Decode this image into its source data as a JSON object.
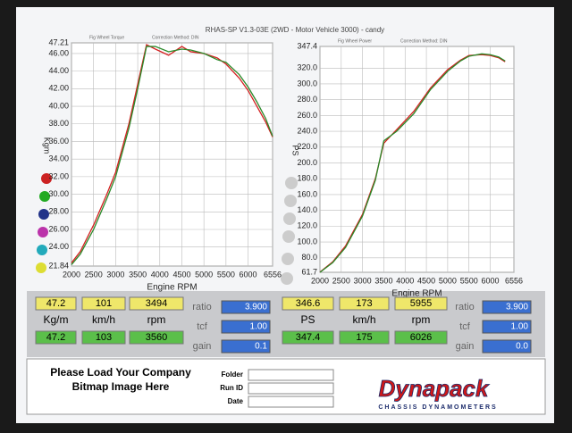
{
  "title": "RHAS-SP V1.3-03E  (2WD - Motor Vehicle 3000) -  candy",
  "chart_data": [
    {
      "type": "line",
      "xlabel": "Engine RPM",
      "ylabel": "Kgm",
      "legend_notes": [
        "Fig Wheel Torque",
        "Correction Method: DIN"
      ],
      "xlim": [
        2000,
        6556
      ],
      "xticks": [
        2000,
        2500,
        3000,
        3500,
        4000,
        4500,
        5000,
        5500,
        6000,
        6556
      ],
      "ylim": [
        21.84,
        47.21
      ],
      "yticks": [
        21.84,
        {
          "value": 24,
          "label": "24.00"
        },
        {
          "value": 26,
          "label": "26.00"
        },
        {
          "value": 28,
          "label": "28.00"
        },
        {
          "value": 30,
          "label": "30.00"
        },
        {
          "value": 32,
          "label": "32.00"
        },
        {
          "value": 34,
          "label": "34.00"
        },
        {
          "value": 36,
          "label": "36.00"
        },
        {
          "value": 38,
          "label": "38.00"
        },
        {
          "value": 40,
          "label": "40.00"
        },
        {
          "value": 42,
          "label": "42.00"
        },
        {
          "value": 44,
          "label": "44.00"
        },
        {
          "value": 46,
          "label": "46.00"
        },
        47.21
      ],
      "grid": true,
      "x": [
        2000,
        2200,
        2500,
        2800,
        3000,
        3300,
        3500,
        3700,
        3900,
        4200,
        4500,
        4700,
        5000,
        5300,
        5500,
        5800,
        6000,
        6200,
        6400,
        6556
      ],
      "series": [
        {
          "color": "#d42020",
          "values": [
            22.2,
            23.5,
            26.5,
            30,
            32.5,
            38,
            42.5,
            47.0,
            46.5,
            45.8,
            46.8,
            46.2,
            46.0,
            45.5,
            44.8,
            43.2,
            41.8,
            40,
            38.2,
            36.5
          ]
        },
        {
          "color": "#2a8a2a",
          "values": [
            22.0,
            23.2,
            26,
            29.5,
            32,
            37.5,
            42,
            46.8,
            46.8,
            46.2,
            46.5,
            46.4,
            46.0,
            45.3,
            45,
            43.6,
            42.2,
            40.5,
            38.6,
            36.6
          ]
        }
      ]
    },
    {
      "type": "line",
      "xlabel": "Engine RPM",
      "ylabel": "PS",
      "legend_notes": [
        "Fig Wheel Power",
        "Correction Method: DIN"
      ],
      "xlim": [
        2000,
        6556
      ],
      "xticks": [
        2000,
        2500,
        3000,
        3500,
        4000,
        4500,
        5000,
        5500,
        6000,
        6556
      ],
      "ylim": [
        61.7,
        347.4
      ],
      "yticks": [
        61.7,
        {
          "value": 80,
          "label": "80.0"
        },
        {
          "value": 100,
          "label": "100.0"
        },
        {
          "value": 120,
          "label": "120.0"
        },
        {
          "value": 140,
          "label": "140.0"
        },
        {
          "value": 160,
          "label": "160.0"
        },
        {
          "value": 180,
          "label": "180.0"
        },
        {
          "value": 200,
          "label": "200.0"
        },
        {
          "value": 220,
          "label": "220.0"
        },
        {
          "value": 240,
          "label": "240.0"
        },
        {
          "value": 260,
          "label": "260.0"
        },
        {
          "value": 280,
          "label": "280.0"
        },
        {
          "value": 300,
          "label": "300.0"
        },
        {
          "value": 320,
          "label": "320.0"
        },
        347.4
      ],
      "grid": true,
      "x": [
        2000,
        2300,
        2600,
        3000,
        3300,
        3500,
        3800,
        4200,
        4600,
        5000,
        5300,
        5500,
        5800,
        6000,
        6200,
        6350
      ],
      "series": [
        {
          "color": "#d42020",
          "values": [
            62,
            75,
            95,
            135,
            180,
            225,
            242,
            265,
            295,
            318,
            330,
            336,
            337,
            336,
            333,
            328
          ]
        },
        {
          "color": "#2a8a2a",
          "values": [
            61.7,
            74,
            93,
            133,
            178,
            228,
            240,
            262,
            293,
            316,
            329,
            335,
            338,
            337,
            334,
            329
          ]
        }
      ]
    }
  ],
  "panel": [
    {
      "yellow": [
        "47.2",
        "101",
        "3494"
      ],
      "labels": [
        "Kg/m",
        "km/h",
        "rpm"
      ],
      "green": [
        "47.2",
        "103",
        "3560"
      ],
      "side": [
        [
          "ratio",
          "3.900"
        ],
        [
          "tcf",
          "1.00"
        ],
        [
          "gain",
          "0.1"
        ]
      ]
    },
    {
      "yellow": [
        "346.6",
        "173",
        "5955"
      ],
      "labels": [
        "PS",
        "km/h",
        "rpm"
      ],
      "green": [
        "347.4",
        "175",
        "6026"
      ],
      "side": [
        [
          "ratio",
          "3.900"
        ],
        [
          "tcf",
          "1.00"
        ],
        [
          "gain",
          "0.0"
        ]
      ]
    }
  ],
  "footer": {
    "bitmap_note": [
      "Please Load Your Company",
      "Bitmap Image Here"
    ],
    "fields": [
      "Folder",
      "Run ID",
      "Date"
    ],
    "logo": "Dynapack",
    "logo_sub": "CHASSIS DYNAMOMETERS"
  }
}
